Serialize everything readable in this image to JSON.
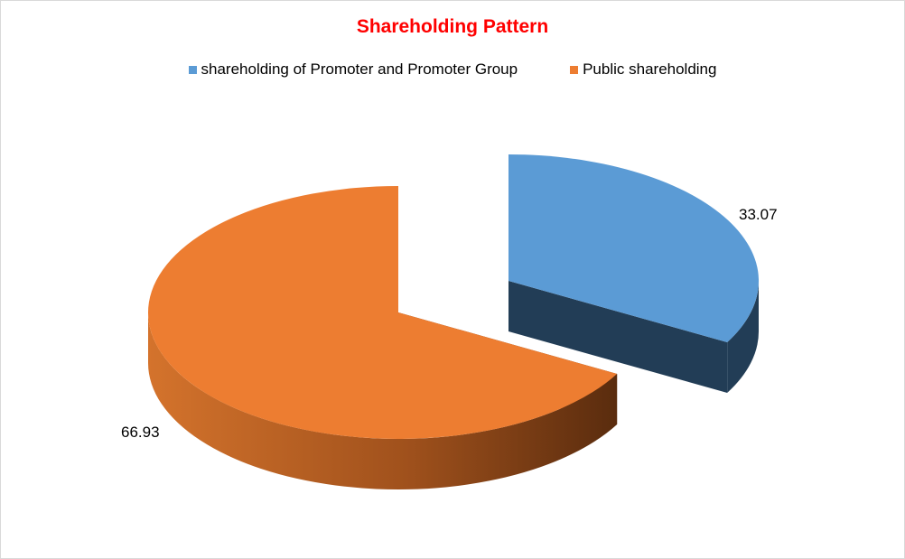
{
  "chart_data": {
    "type": "pie",
    "style": "3d-exploded",
    "title": "Shareholding Pattern",
    "legend_position": "top",
    "series": [
      {
        "name": "shareholding of Promoter and Promoter Group",
        "value": 33.07,
        "label": "33.07",
        "color": "#5b9bd5",
        "side_color": "#223d56",
        "exploded": true
      },
      {
        "name": "Public shareholding",
        "value": 66.93,
        "label": "66.93",
        "color": "#ed7d31",
        "side_color": "#8a4518",
        "exploded": false
      }
    ]
  }
}
